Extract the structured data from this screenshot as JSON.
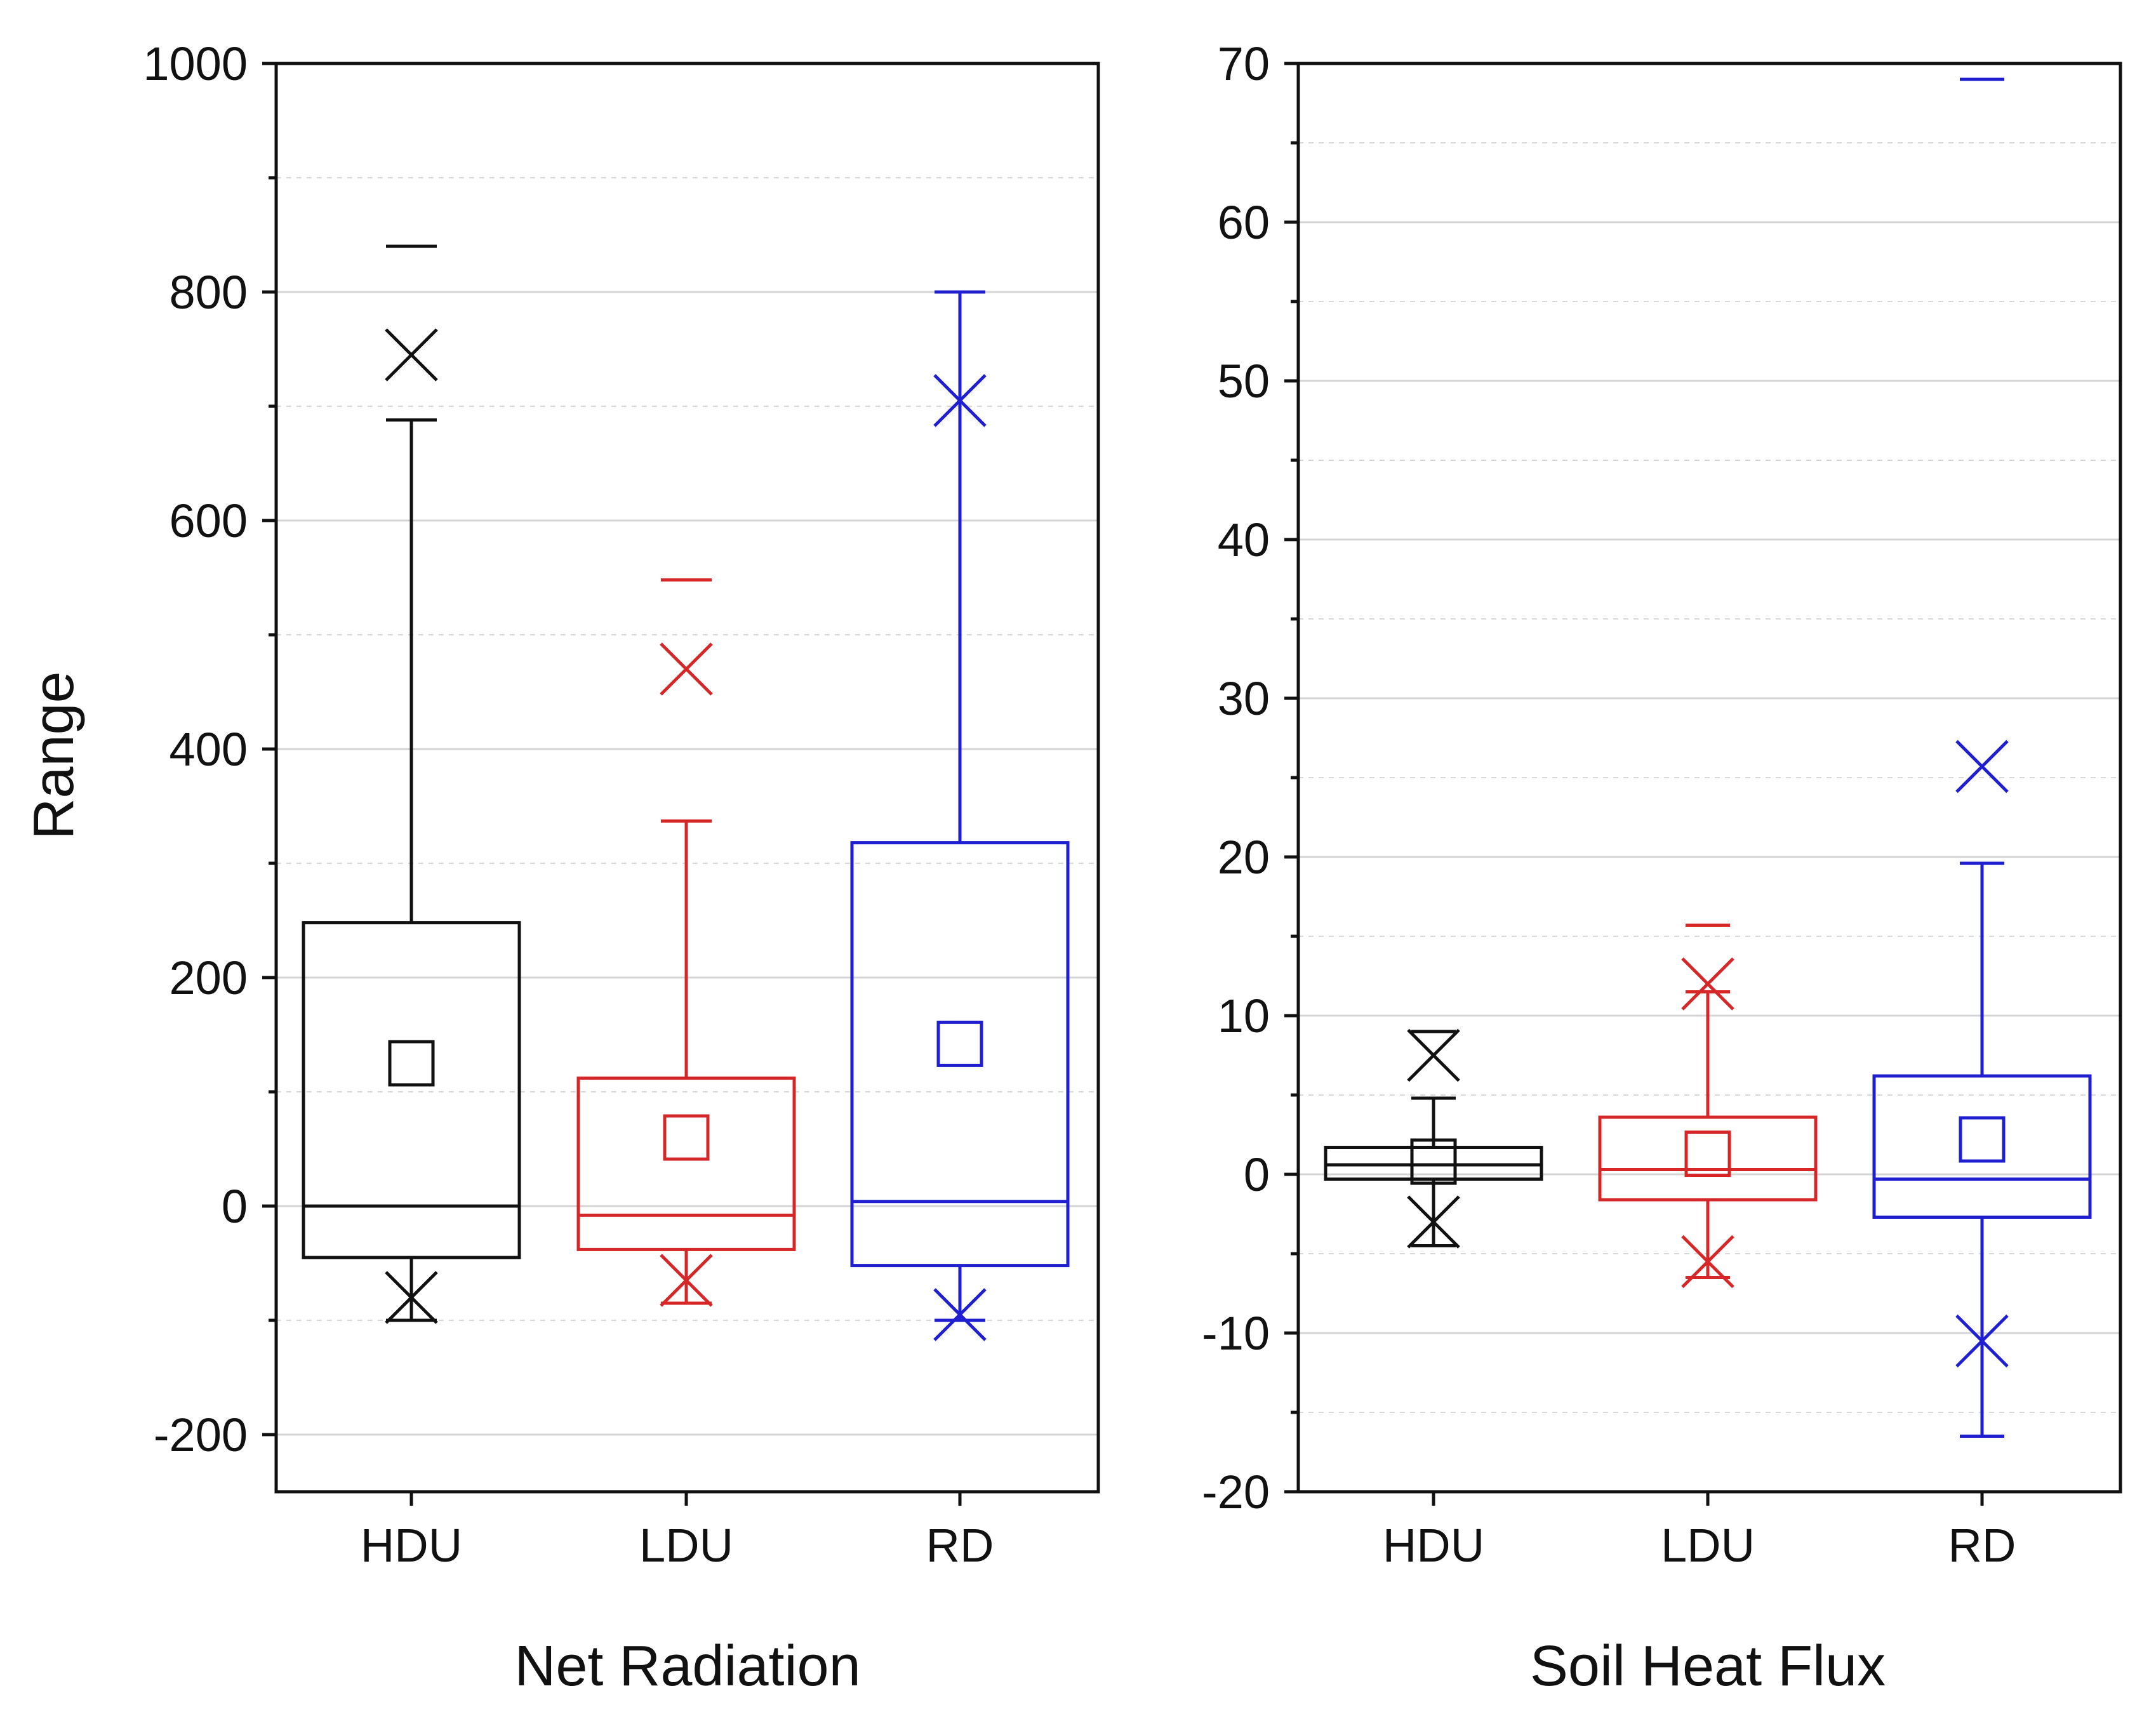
{
  "chart_data": [
    {
      "type": "box",
      "title": "",
      "xlabel": "Net Radiation",
      "ylabel": "Range",
      "ylim": [
        -250,
        1000
      ],
      "yticks": [
        -200,
        0,
        200,
        400,
        600,
        800,
        1000
      ],
      "ytick_labels": [
        "-200",
        "0",
        "200",
        "400",
        "600",
        "800",
        "1000"
      ],
      "categories": [
        "HDU",
        "LDU",
        "RD"
      ],
      "colors": [
        "#111111",
        "#d62728",
        "#1f1fd0"
      ],
      "boxes": [
        {
          "name": "HDU",
          "q1": -45,
          "median": 0,
          "q3": 248,
          "mean": 125,
          "whisker_low": -100,
          "whisker_high": 688,
          "x_high": 745,
          "x_low": -80,
          "max": 840
        },
        {
          "name": "LDU",
          "q1": -38,
          "median": -8,
          "q3": 112,
          "mean": 60,
          "whisker_low": -85,
          "whisker_high": 337,
          "x_high": 470,
          "x_low": -65,
          "max": 548
        },
        {
          "name": "RD",
          "q1": -52,
          "median": 4,
          "q3": 318,
          "mean": 142,
          "whisker_low": -100,
          "whisker_high": 800,
          "x_high": 705,
          "x_low": -95,
          "max": 800
        }
      ]
    },
    {
      "type": "box",
      "title": "",
      "xlabel": "Soil Heat Flux",
      "ylabel": "",
      "ylim": [
        -20,
        70
      ],
      "yticks": [
        -20,
        -10,
        0,
        10,
        20,
        30,
        40,
        50,
        60,
        70
      ],
      "ytick_labels": [
        "-20",
        "-10",
        "0",
        "10",
        "20",
        "30",
        "40",
        "50",
        "60",
        "70"
      ],
      "categories": [
        "HDU",
        "LDU",
        "RD"
      ],
      "colors": [
        "#111111",
        "#d62728",
        "#1f1fd0"
      ],
      "boxes": [
        {
          "name": "HDU",
          "q1": -0.3,
          "median": 0.6,
          "q3": 1.7,
          "mean": 0.8,
          "whisker_low": -4.5,
          "whisker_high": 4.8,
          "x_high": 7.5,
          "x_low": -3.0,
          "max": 9.0
        },
        {
          "name": "LDU",
          "q1": -1.6,
          "median": 0.3,
          "q3": 3.6,
          "mean": 1.3,
          "whisker_low": -6.5,
          "whisker_high": 11.5,
          "x_high": 12.0,
          "x_low": -5.5,
          "max": 15.7
        },
        {
          "name": "RD",
          "q1": -2.7,
          "median": -0.3,
          "q3": 6.2,
          "mean": 2.2,
          "whisker_low": -16.5,
          "whisker_high": 19.6,
          "x_high": 25.7,
          "x_low": -10.5,
          "max": 69.0
        }
      ]
    }
  ]
}
